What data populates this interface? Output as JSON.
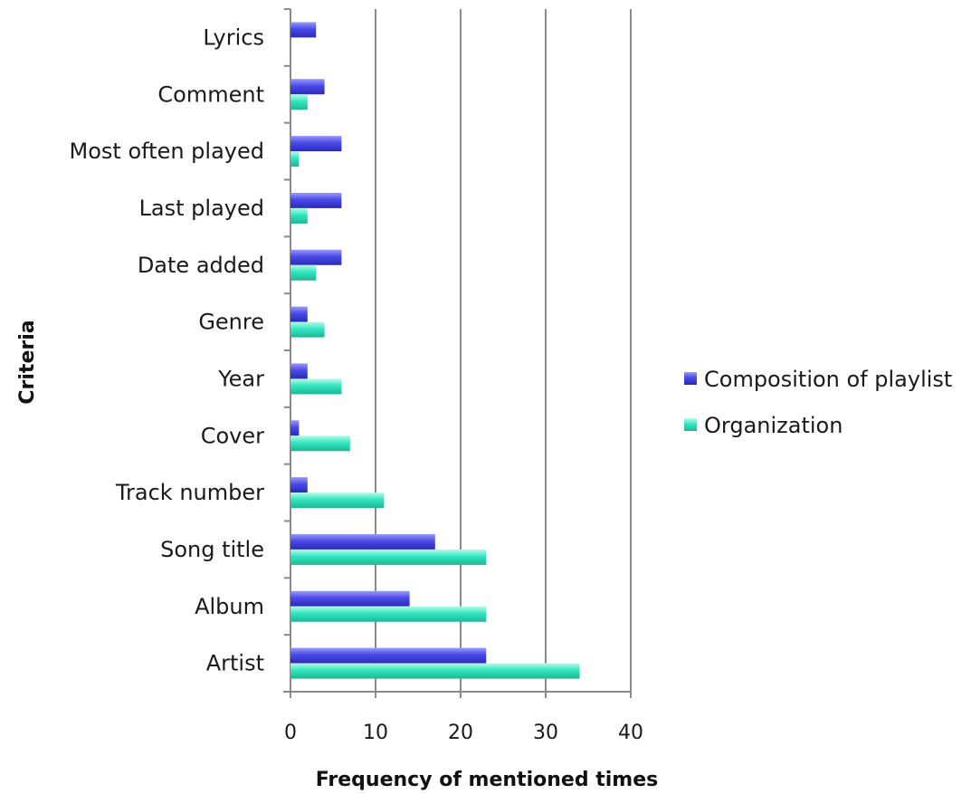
{
  "chart_data": {
    "type": "bar",
    "orientation": "horizontal",
    "title": "",
    "xlabel": "Frequency of mentioned times",
    "ylabel": "Criteria",
    "xlim": [
      0,
      40
    ],
    "xticks": [
      0,
      10,
      20,
      30,
      40
    ],
    "grid": "vertical gridlines",
    "legend_position": "right",
    "categories": [
      "Lyrics",
      "Comment",
      "Most often played",
      "Last played",
      "Date added",
      "Genre",
      "Year",
      "Cover",
      "Track number",
      "Song title",
      "Album",
      "Artist"
    ],
    "series": [
      {
        "name": "Composition of playlist",
        "color": "#4a4ae8",
        "values": [
          3,
          4,
          6,
          6,
          6,
          2,
          2,
          1,
          2,
          17,
          14,
          23
        ]
      },
      {
        "name": "Organization",
        "color": "#33e6c0",
        "values": [
          0,
          2,
          1,
          2,
          3,
          4,
          6,
          7,
          11,
          23,
          23,
          34
        ]
      }
    ]
  }
}
